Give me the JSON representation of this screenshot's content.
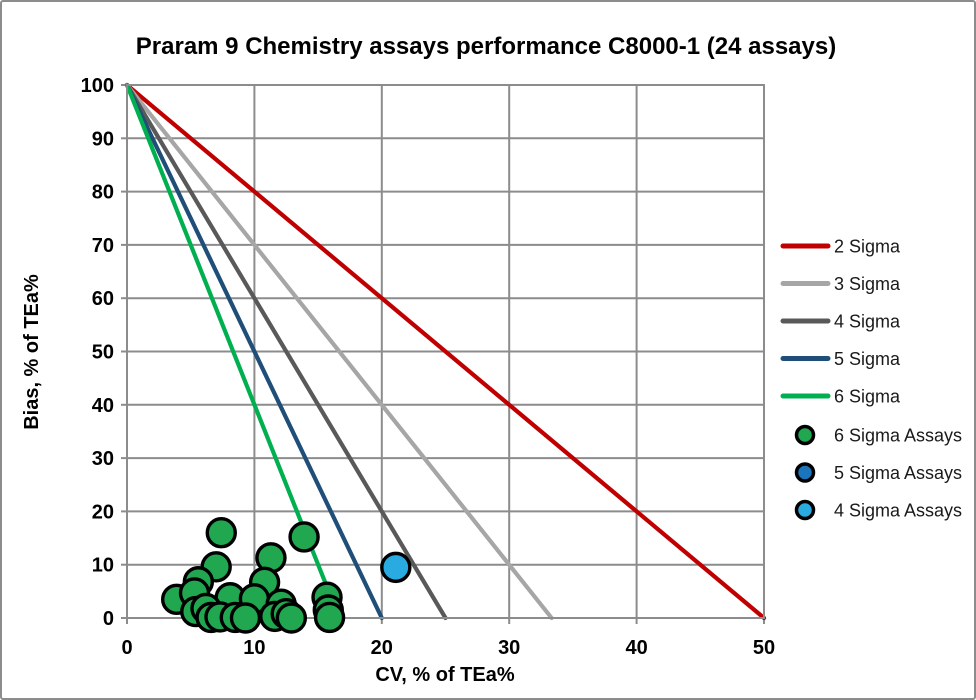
{
  "frame": {
    "background": "#ffffff",
    "border_color": "#8c8c8c"
  },
  "chart_data": {
    "type": "scatter",
    "title": "Praram 9 Chemistry assays performance C8000-1 (24 assays)",
    "xlabel": "CV, % of TEa%",
    "ylabel": "Bias, % of TEa%",
    "xlim": [
      0,
      50
    ],
    "ylim": [
      0,
      100
    ],
    "x_ticks": [
      0,
      10,
      20,
      30,
      40,
      50
    ],
    "y_ticks": [
      0,
      10,
      20,
      30,
      40,
      50,
      60,
      70,
      80,
      90,
      100
    ],
    "grid": true,
    "gridline_color": "#8c8c8c",
    "legend_position": "right",
    "sigma_lines": [
      {
        "name": "2 Sigma",
        "color": "#c00000",
        "y_start": 100,
        "x_intercept": 50
      },
      {
        "name": "3 Sigma",
        "color": "#a6a6a6",
        "y_start": 100,
        "x_intercept": 33.33
      },
      {
        "name": "4 Sigma",
        "color": "#595959",
        "y_start": 100,
        "x_intercept": 25
      },
      {
        "name": "5 Sigma",
        "color": "#1f4e79",
        "y_start": 100,
        "x_intercept": 20
      },
      {
        "name": "6 Sigma",
        "color": "#00b050",
        "y_start": 100,
        "x_intercept": 16.67
      }
    ],
    "series": [
      {
        "name": "6 Sigma Assays",
        "color": "#21a74f",
        "points": [
          [
            7.4,
            16.0
          ],
          [
            13.9,
            15.2
          ],
          [
            11.3,
            11.3
          ],
          [
            7.0,
            9.6
          ],
          [
            5.6,
            6.8
          ],
          [
            10.8,
            6.7
          ],
          [
            3.9,
            3.5
          ],
          [
            5.3,
            4.7
          ],
          [
            8.1,
            3.8
          ],
          [
            10.0,
            3.6
          ],
          [
            12.1,
            2.6
          ],
          [
            15.7,
            3.9
          ],
          [
            5.4,
            1.2
          ],
          [
            6.2,
            1.8
          ],
          [
            6.6,
            0.1
          ],
          [
            7.3,
            0.2
          ],
          [
            8.5,
            0.1
          ],
          [
            9.3,
            0.0
          ],
          [
            11.6,
            0.3
          ],
          [
            12.5,
            0.8
          ],
          [
            12.9,
            0.0
          ],
          [
            15.8,
            1.5
          ],
          [
            15.9,
            0.1
          ]
        ]
      },
      {
        "name": "5 Sigma Assays",
        "color": "#1b75bc",
        "points": []
      },
      {
        "name": "4 Sigma Assays",
        "color": "#29abe2",
        "points": [
          [
            21.1,
            9.5
          ]
        ]
      }
    ]
  }
}
